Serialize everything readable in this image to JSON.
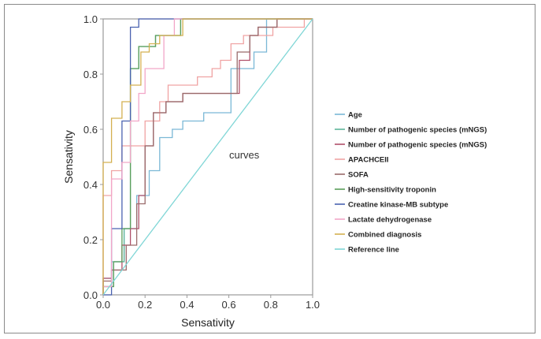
{
  "chart_data": {
    "type": "line",
    "title": "",
    "xlabel": "Sensativity",
    "ylabel": "Sensativity",
    "xlim": [
      0.0,
      1.0
    ],
    "ylim": [
      0.0,
      1.0
    ],
    "xticks": [
      "0.0",
      "0.2",
      "0.4",
      "0.6",
      "0.8",
      "1.0"
    ],
    "yticks": [
      "0.0",
      "0.2",
      "0.4",
      "0.6",
      "0.8",
      "1.0"
    ],
    "annotation": "curves",
    "grid": false,
    "legend_position": "right",
    "series": [
      {
        "name": "Age",
        "color": "#7ab8d6",
        "x": [
          0.0,
          0.0,
          0.04,
          0.04,
          0.1,
          0.1,
          0.16,
          0.16,
          0.22,
          0.22,
          0.27,
          0.27,
          0.33,
          0.33,
          0.38,
          0.38,
          0.48,
          0.48,
          0.61,
          0.61,
          0.72,
          0.72,
          0.78,
          0.78,
          1.0
        ],
        "y": [
          0.0,
          0.06,
          0.06,
          0.12,
          0.12,
          0.24,
          0.24,
          0.36,
          0.36,
          0.45,
          0.45,
          0.57,
          0.57,
          0.6,
          0.6,
          0.63,
          0.63,
          0.66,
          0.66,
          0.82,
          0.82,
          0.88,
          0.88,
          1.0,
          1.0
        ]
      },
      {
        "name": "Number of pathogenic species (mNGS)",
        "color": "#5eb59a",
        "x": [
          0.0,
          0.0,
          0.05,
          0.05,
          0.1,
          0.1,
          0.13,
          0.13,
          0.17,
          0.17,
          0.25,
          0.25,
          0.37,
          0.37,
          1.0
        ],
        "y": [
          0.0,
          0.03,
          0.03,
          0.12,
          0.12,
          0.24,
          0.24,
          0.82,
          0.82,
          0.9,
          0.9,
          0.94,
          0.94,
          1.0,
          1.0
        ]
      },
      {
        "name": "Number of pathogenic species (mNGS)",
        "color": "#b0506a",
        "x": [
          0.0,
          0.0,
          0.04,
          0.04,
          0.09,
          0.09,
          0.13,
          0.13,
          0.17,
          0.17,
          0.2,
          0.2,
          0.24,
          0.24,
          0.3,
          0.3,
          0.38,
          0.38,
          0.65,
          0.65,
          0.7,
          0.7,
          0.74,
          0.74,
          0.83,
          0.83,
          1.0
        ],
        "y": [
          0.0,
          0.06,
          0.06,
          0.09,
          0.09,
          0.18,
          0.18,
          0.24,
          0.24,
          0.36,
          0.36,
          0.54,
          0.54,
          0.66,
          0.66,
          0.7,
          0.7,
          0.73,
          0.73,
          0.85,
          0.85,
          0.94,
          0.94,
          0.97,
          0.97,
          1.0,
          1.0
        ]
      },
      {
        "name": "APACHCEII",
        "color": "#f0a3a3",
        "x": [
          0.0,
          0.0,
          0.04,
          0.04,
          0.09,
          0.09,
          0.2,
          0.2,
          0.27,
          0.27,
          0.31,
          0.31,
          0.45,
          0.45,
          0.52,
          0.52,
          0.56,
          0.56,
          0.61,
          0.61,
          0.67,
          0.67,
          0.81,
          0.81,
          0.96,
          0.96,
          1.0
        ],
        "y": [
          0.0,
          0.36,
          0.36,
          0.45,
          0.45,
          0.54,
          0.54,
          0.63,
          0.63,
          0.7,
          0.7,
          0.76,
          0.76,
          0.79,
          0.79,
          0.82,
          0.82,
          0.85,
          0.85,
          0.91,
          0.91,
          0.94,
          0.94,
          0.97,
          0.97,
          1.0,
          1.0
        ]
      },
      {
        "name": "SOFA",
        "color": "#9a6b6b",
        "x": [
          0.0,
          0.0,
          0.04,
          0.04,
          0.11,
          0.11,
          0.16,
          0.16,
          0.2,
          0.2,
          0.24,
          0.24,
          0.3,
          0.3,
          0.38,
          0.38,
          0.64,
          0.64,
          0.7,
          0.7,
          0.74,
          0.74,
          0.83,
          0.83,
          1.0
        ],
        "y": [
          0.0,
          0.05,
          0.05,
          0.09,
          0.09,
          0.18,
          0.18,
          0.33,
          0.33,
          0.54,
          0.54,
          0.66,
          0.66,
          0.7,
          0.7,
          0.73,
          0.73,
          0.88,
          0.88,
          0.94,
          0.94,
          0.97,
          0.97,
          1.0,
          1.0
        ]
      },
      {
        "name": "High-sensitivity troponin",
        "color": "#5c9e5c",
        "x": [
          0.0,
          0.0,
          0.05,
          0.05,
          0.09,
          0.09,
          0.13,
          0.13,
          0.17,
          0.17,
          0.25,
          0.25,
          0.37,
          0.37,
          1.0
        ],
        "y": [
          0.0,
          0.03,
          0.03,
          0.12,
          0.12,
          0.24,
          0.24,
          0.82,
          0.82,
          0.9,
          0.9,
          0.94,
          0.94,
          1.0,
          1.0
        ]
      },
      {
        "name": "Creatine kinase-MB subtype",
        "color": "#4a62b0",
        "x": [
          0.0,
          0.04,
          0.04,
          0.09,
          0.09,
          0.13,
          0.13,
          0.17,
          0.17,
          1.0
        ],
        "y": [
          0.0,
          0.0,
          0.24,
          0.24,
          0.63,
          0.63,
          0.97,
          0.97,
          1.0,
          1.0
        ]
      },
      {
        "name": "Lactate dehydrogenase",
        "color": "#f2a6c8",
        "x": [
          0.0,
          0.0,
          0.04,
          0.04,
          0.09,
          0.09,
          0.13,
          0.13,
          0.17,
          0.17,
          0.2,
          0.2,
          0.29,
          0.29,
          0.34,
          0.34,
          1.0
        ],
        "y": [
          0.0,
          0.03,
          0.03,
          0.42,
          0.42,
          0.48,
          0.48,
          0.63,
          0.63,
          0.73,
          0.73,
          0.82,
          0.82,
          0.94,
          0.94,
          1.0,
          1.0
        ]
      },
      {
        "name": "Combined diagnosis",
        "color": "#d4b050",
        "x": [
          0.0,
          0.0,
          0.04,
          0.04,
          0.09,
          0.09,
          0.13,
          0.13,
          0.18,
          0.18,
          0.22,
          0.22,
          0.27,
          0.27,
          0.38,
          0.38,
          1.0
        ],
        "y": [
          0.0,
          0.48,
          0.48,
          0.64,
          0.64,
          0.7,
          0.7,
          0.76,
          0.76,
          0.88,
          0.88,
          0.91,
          0.91,
          0.94,
          0.94,
          1.0,
          1.0
        ]
      },
      {
        "name": "Reference line",
        "color": "#7fd6d6",
        "x": [
          0.0,
          1.0
        ],
        "y": [
          0.0,
          1.0
        ]
      }
    ]
  }
}
